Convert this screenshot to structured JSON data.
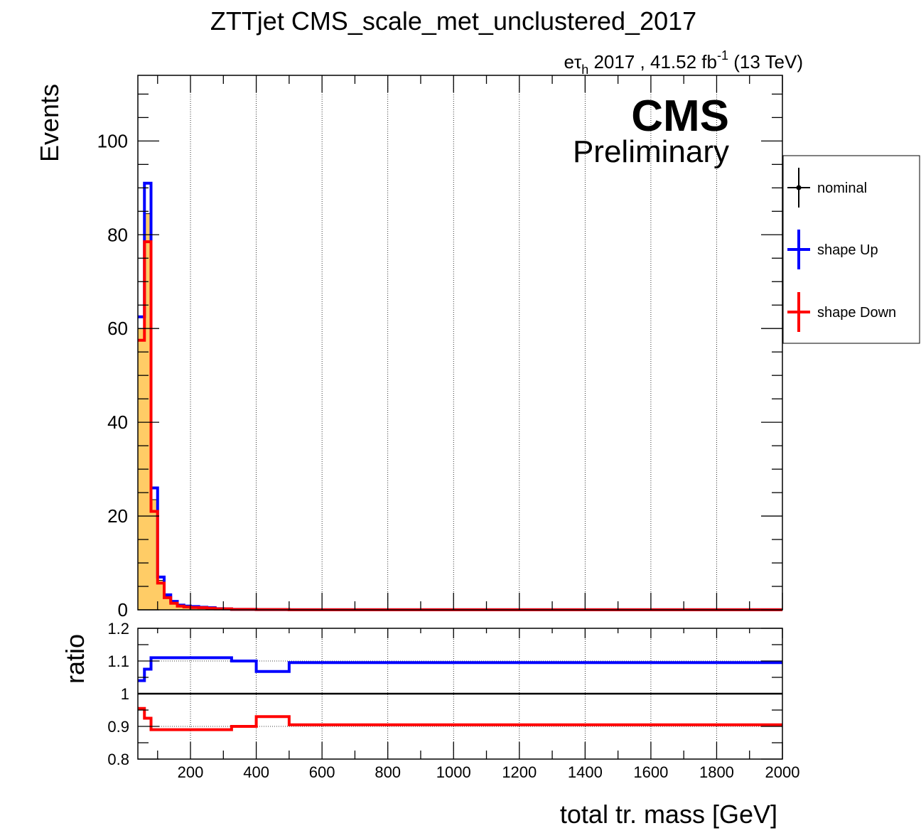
{
  "title": "ZTTjet CMS_scale_met_unclustered_2017",
  "lumi": {
    "prefix": "e",
    "tau": "τ",
    "tau_sub": "h",
    "text": " 2017 , 41.52 fb",
    "sup": "-1",
    "suffix": " (13 TeV)"
  },
  "cms_label": "CMS",
  "cms_sublabel": "Preliminary",
  "colors": {
    "nominal_fill": "#ffcc66",
    "up": "#0000ff",
    "down": "#ff0000",
    "nominal": "#000000"
  },
  "chart_data": {
    "type": "line",
    "bins": [
      40,
      60,
      80,
      100,
      120,
      140,
      160,
      180,
      200,
      225,
      250,
      275,
      300,
      325,
      350,
      375,
      400,
      500,
      2000
    ],
    "xlabel": "total tr. mass [GeV]",
    "xlim": [
      40,
      2000
    ],
    "x_ticks": [
      "200",
      "400",
      "600",
      "800",
      "1000",
      "1200",
      "1400",
      "1600",
      "1800",
      "2000"
    ],
    "grid_x": true,
    "top": {
      "ylabel": "Events",
      "ylim": [
        0,
        114
      ],
      "y_ticks": [
        "0",
        "20",
        "40",
        "60",
        "80",
        "100"
      ],
      "series": [
        {
          "name": "nominal",
          "style": "filled",
          "values": [
            60.0,
            84.5,
            23.5,
            6.3,
            2.9,
            1.6,
            0.9,
            0.7,
            0.6,
            0.5,
            0.4,
            0.2,
            0.2,
            0.1,
            0.1,
            0.1,
            0.05,
            0.02
          ]
        },
        {
          "name": "shape Up",
          "values": [
            62.5,
            91.0,
            26.0,
            7.0,
            3.2,
            1.8,
            1.0,
            0.8,
            0.7,
            0.55,
            0.45,
            0.25,
            0.2,
            0.1,
            0.1,
            0.1,
            0.05,
            0.02
          ]
        },
        {
          "name": "shape Down",
          "values": [
            57.5,
            78.5,
            21.0,
            5.7,
            2.6,
            1.4,
            0.8,
            0.6,
            0.5,
            0.45,
            0.35,
            0.2,
            0.2,
            0.1,
            0.1,
            0.1,
            0.05,
            0.02
          ]
        }
      ]
    },
    "ratio": {
      "ylabel": "ratio",
      "ylim": [
        0.8,
        1.2
      ],
      "y_ticks": [
        "0.8",
        "0.9",
        "1",
        "1.1",
        "1.2"
      ],
      "series": [
        {
          "name": "shape Up",
          "values": [
            1.04,
            1.075,
            1.11,
            1.11,
            1.11,
            1.11,
            1.11,
            1.11,
            1.11,
            1.11,
            1.11,
            1.11,
            1.11,
            1.1,
            1.1,
            1.1,
            1.068,
            1.095
          ]
        },
        {
          "name": "shape Down",
          "values": [
            0.955,
            0.925,
            0.89,
            0.89,
            0.89,
            0.89,
            0.89,
            0.89,
            0.89,
            0.89,
            0.89,
            0.89,
            0.89,
            0.9,
            0.9,
            0.9,
            0.93,
            0.905
          ]
        }
      ]
    }
  },
  "legend": {
    "items": [
      {
        "label": "nominal"
      },
      {
        "label": "shape Up"
      },
      {
        "label": "shape Down"
      }
    ]
  }
}
